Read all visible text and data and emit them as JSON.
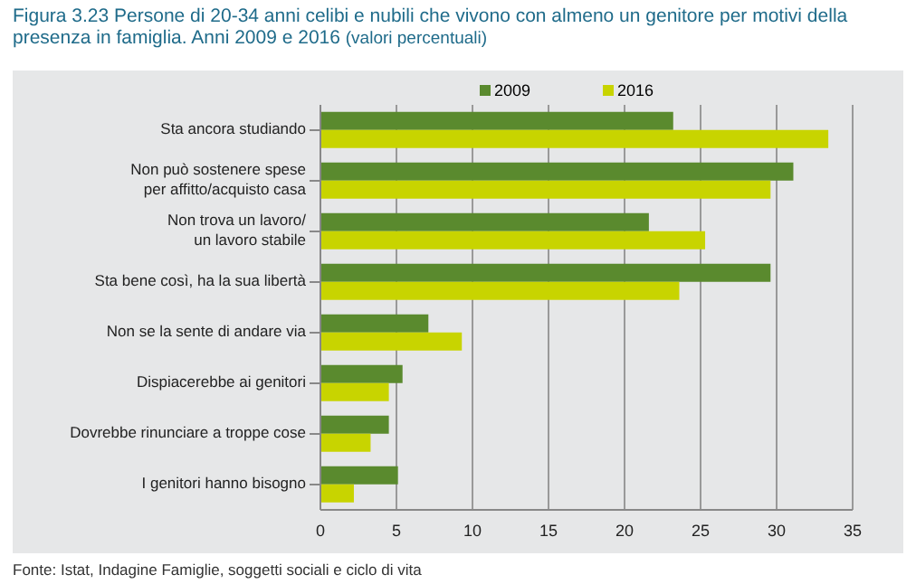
{
  "chart_data": {
    "type": "bar",
    "orientation": "horizontal",
    "title": "Figura 3.23    Persone di 20-34 anni celibi e nubili che vivono con almeno un genitore per motivi della presenza in famiglia. Anni 2009 e 2016",
    "subtitle": "(valori percentuali)",
    "categories": [
      "Sta ancora studiando",
      "Non può sostenere spese\nper affitto/acquisto casa",
      "Non trova un lavoro/\nun lavoro stabile",
      "Sta bene così, ha la sua libertà",
      "Non se la sente di andare via",
      "Dispiacerebbe ai genitori",
      "Dovrebbe rinunciare a troppe cose",
      "I genitori hanno bisogno"
    ],
    "series": [
      {
        "name": "2009",
        "color": "#5a8a2e",
        "values": [
          23.2,
          31.1,
          21.6,
          29.6,
          7.1,
          5.4,
          4.5,
          5.1
        ]
      },
      {
        "name": "2016",
        "color": "#c8d400",
        "values": [
          33.4,
          29.6,
          25.3,
          23.6,
          9.3,
          4.5,
          3.3,
          2.2
        ]
      }
    ],
    "xlim": [
      0,
      35
    ],
    "xticks": [
      0,
      5,
      10,
      15,
      20,
      25,
      30,
      35
    ],
    "grid": "x",
    "legend": "top",
    "annotations": [
      "Fonte: Istat, Indagine Famiglie, soggetti sociali e ciclo di vita"
    ]
  }
}
